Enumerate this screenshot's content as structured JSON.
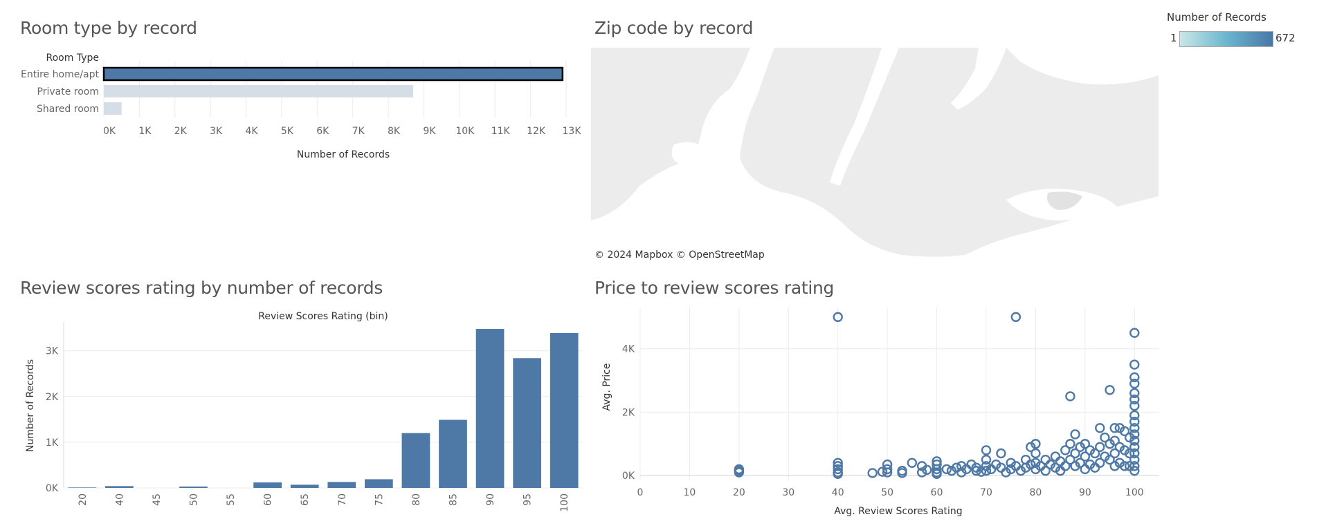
{
  "titles": {
    "room": "Room type by record",
    "zip": "Zip code by record",
    "review": "Review scores rating by number of records",
    "price": "Price to review scores rating"
  },
  "map": {
    "attribution": "© 2024 Mapbox  © OpenStreetMap",
    "legend_title": "Number of Records",
    "legend_min": "1",
    "legend_max": "672",
    "ramp_colors": [
      "#c9e6e6",
      "#6bb6cf",
      "#4a77a6"
    ]
  },
  "colors": {
    "bar": "#4e79a7",
    "bar_muted": "#d5dde6",
    "grid": "#ececec",
    "axis_text": "#666666",
    "label_text": "#333333"
  },
  "chart_data": [
    {
      "id": "room",
      "type": "bar",
      "orientation": "horizontal",
      "title": "Room type by record",
      "row_header": "Room Type",
      "categories": [
        "Entire home/apt",
        "Private room",
        "Shared room"
      ],
      "values": [
        12900,
        8700,
        500
      ],
      "highlighted": "Entire home/apt",
      "xlabel": "Number of Records",
      "xlim": [
        0,
        13000
      ],
      "xticks": [
        0,
        1000,
        2000,
        3000,
        4000,
        5000,
        6000,
        7000,
        8000,
        9000,
        10000,
        11000,
        12000,
        13000
      ],
      "xtick_labels": [
        "0K",
        "1K",
        "2K",
        "3K",
        "4K",
        "5K",
        "6K",
        "7K",
        "8K",
        "9K",
        "10K",
        "11K",
        "12K",
        "13K"
      ]
    },
    {
      "id": "review",
      "type": "bar",
      "title": "Review scores rating by number of records",
      "xlabel": "Review Scores Rating (bin)",
      "ylabel": "Number of Records",
      "categories": [
        "20",
        "40",
        "45",
        "50",
        "55",
        "60",
        "65",
        "70",
        "75",
        "80",
        "85",
        "90",
        "95",
        "100"
      ],
      "values": [
        10,
        40,
        0,
        30,
        0,
        120,
        70,
        130,
        190,
        1200,
        1490,
        3480,
        2840,
        3390
      ],
      "ylim": [
        0,
        3600
      ],
      "yticks": [
        0,
        1000,
        2000,
        3000
      ],
      "ytick_labels": [
        "0K",
        "1K",
        "2K",
        "3K"
      ]
    },
    {
      "id": "price",
      "type": "scatter",
      "title": "Price to review scores rating",
      "xlabel": "Avg. Review Scores Rating",
      "ylabel": "Avg. Price",
      "xlim": [
        0,
        105
      ],
      "ylim": [
        -150,
        5300
      ],
      "xticks": [
        0,
        10,
        20,
        30,
        40,
        50,
        60,
        70,
        80,
        90,
        100
      ],
      "yticks": [
        0,
        2000,
        4000
      ],
      "ytick_labels": [
        "0K",
        "2K",
        "4K"
      ],
      "points": [
        [
          20,
          100
        ],
        [
          20,
          150
        ],
        [
          20,
          200
        ],
        [
          40,
          5000
        ],
        [
          40,
          400
        ],
        [
          40,
          300
        ],
        [
          40,
          200
        ],
        [
          40,
          100
        ],
        [
          40,
          50
        ],
        [
          47,
          80
        ],
        [
          49,
          120
        ],
        [
          50,
          200
        ],
        [
          50,
          350
        ],
        [
          50,
          100
        ],
        [
          53,
          80
        ],
        [
          53,
          150
        ],
        [
          55,
          400
        ],
        [
          57,
          300
        ],
        [
          57,
          100
        ],
        [
          58,
          180
        ],
        [
          60,
          200
        ],
        [
          60,
          350
        ],
        [
          60,
          450
        ],
        [
          60,
          100
        ],
        [
          60,
          50
        ],
        [
          62,
          200
        ],
        [
          63,
          150
        ],
        [
          64,
          250
        ],
        [
          65,
          100
        ],
        [
          65,
          300
        ],
        [
          66,
          200
        ],
        [
          67,
          350
        ],
        [
          68,
          150
        ],
        [
          68,
          250
        ],
        [
          69,
          120
        ],
        [
          70,
          500
        ],
        [
          70,
          800
        ],
        [
          70,
          300
        ],
        [
          70,
          150
        ],
        [
          71,
          200
        ],
        [
          72,
          350
        ],
        [
          73,
          700
        ],
        [
          73,
          250
        ],
        [
          74,
          100
        ],
        [
          75,
          400
        ],
        [
          75,
          200
        ],
        [
          76,
          5000
        ],
        [
          76,
          300
        ],
        [
          77,
          150
        ],
        [
          78,
          500
        ],
        [
          78,
          250
        ],
        [
          79,
          900
        ],
        [
          79,
          350
        ],
        [
          80,
          1000
        ],
        [
          80,
          700
        ],
        [
          80,
          400
        ],
        [
          80,
          200
        ],
        [
          81,
          300
        ],
        [
          82,
          500
        ],
        [
          82,
          150
        ],
        [
          83,
          350
        ],
        [
          84,
          600
        ],
        [
          84,
          250
        ],
        [
          85,
          450
        ],
        [
          85,
          150
        ],
        [
          86,
          800
        ],
        [
          86,
          300
        ],
        [
          87,
          2500
        ],
        [
          87,
          1000
        ],
        [
          87,
          500
        ],
        [
          88,
          1300
        ],
        [
          88,
          700
        ],
        [
          88,
          300
        ],
        [
          89,
          900
        ],
        [
          89,
          400
        ],
        [
          90,
          1000
        ],
        [
          90,
          600
        ],
        [
          90,
          200
        ],
        [
          91,
          800
        ],
        [
          91,
          350
        ],
        [
          92,
          700
        ],
        [
          92,
          250
        ],
        [
          93,
          1500
        ],
        [
          93,
          900
        ],
        [
          93,
          400
        ],
        [
          94,
          1200
        ],
        [
          94,
          600
        ],
        [
          95,
          2700
        ],
        [
          95,
          1000
        ],
        [
          95,
          500
        ],
        [
          96,
          1500
        ],
        [
          96,
          1100
        ],
        [
          96,
          700
        ],
        [
          96,
          300
        ],
        [
          97,
          1500
        ],
        [
          97,
          900
        ],
        [
          97,
          400
        ],
        [
          98,
          1400
        ],
        [
          98,
          800
        ],
        [
          98,
          300
        ],
        [
          99,
          1200
        ],
        [
          99,
          700
        ],
        [
          99,
          300
        ],
        [
          100,
          4500
        ],
        [
          100,
          3500
        ],
        [
          100,
          3100
        ],
        [
          100,
          2900
        ],
        [
          100,
          2600
        ],
        [
          100,
          2400
        ],
        [
          100,
          2200
        ],
        [
          100,
          1900
        ],
        [
          100,
          1700
        ],
        [
          100,
          1500
        ],
        [
          100,
          1300
        ],
        [
          100,
          1100
        ],
        [
          100,
          900
        ],
        [
          100,
          700
        ],
        [
          100,
          500
        ],
        [
          100,
          300
        ],
        [
          100,
          150
        ]
      ]
    }
  ]
}
